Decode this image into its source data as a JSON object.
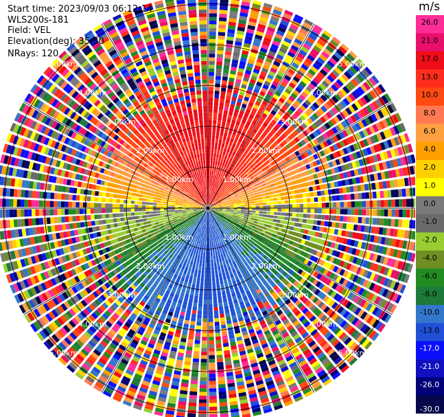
{
  "info": {
    "start_time": "Start time: 2023/09/03 06:12:14",
    "instrument": "WLS200s-181",
    "field": "Field: VEL",
    "elevation": "Elevation(deg): 35.30",
    "nrays": "NRays: 120"
  },
  "chart_data": {
    "type": "heatmap",
    "subtype": "polar-ppi",
    "unit": "m/s",
    "n_rays": 120,
    "range_rings_km": [
      1.0,
      2.0,
      3.0,
      4.0,
      5.0
    ],
    "ring_labels": [
      "1.00km",
      "2.00km",
      "3.00km",
      "4.00km",
      "5.00km"
    ],
    "spoke_step_deg": 30,
    "colorbar": {
      "tick_labels": [
        "26.0",
        "21.0",
        "17.0",
        "13.0",
        "10.0",
        "8.0",
        "6.0",
        "4.0",
        "2.0",
        "1.0",
        "0.0",
        "-1.0",
        "-2.0",
        "-4.0",
        "-6.0",
        "-8.0",
        "-10.0",
        "-13.0",
        "-17.0",
        "-21.0",
        "-26.0",
        "-30.0"
      ],
      "colors": [
        "#ff2d98",
        "#e8106a",
        "#ee0d18",
        "#ff2d1e",
        "#ff4a12",
        "#ff7a52",
        "#ffa040",
        "#ffa000",
        "#ffd000",
        "#ffff00",
        "#7a7a7a",
        "#6a6a6a",
        "#9acd32",
        "#6f8e23",
        "#228b22",
        "#1e7a3a",
        "#3377cc",
        "#2050d8",
        "#0a10ff",
        "#1010c0",
        "#000078",
        "#06064a"
      ]
    },
    "pattern": {
      "near_range_km": 2.6,
      "north": "red/orange (positive)",
      "south": "blue (negative)",
      "east_west": "gray/yellow/green near zero",
      "far_range": "noise (random colors)"
    }
  }
}
